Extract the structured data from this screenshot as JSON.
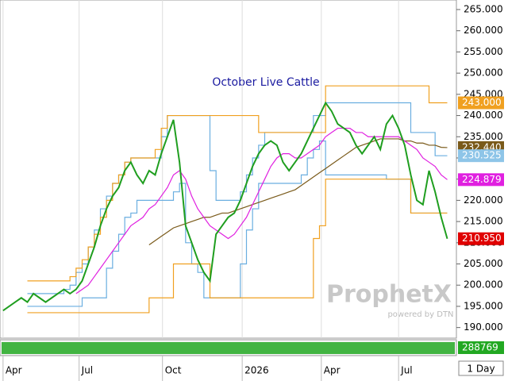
{
  "chart_data": {
    "type": "line",
    "title": "October Live Cattle",
    "watermark": "ProphetX",
    "watermark_sub": "powered by DTN",
    "interval": "1 Day",
    "x": [
      0,
      1,
      2,
      3,
      4,
      5,
      6,
      7,
      8,
      9,
      10,
      11,
      12,
      13,
      14,
      15,
      16,
      17,
      18,
      19,
      20,
      21,
      22,
      23,
      24,
      25,
      26,
      27,
      28,
      29,
      30,
      31,
      32,
      33,
      34,
      35,
      36,
      37,
      38,
      39,
      40,
      41,
      42,
      43,
      44,
      45,
      46,
      47,
      48,
      49,
      50,
      51,
      52,
      53,
      54,
      55,
      56,
      57,
      58,
      59,
      60,
      61,
      62,
      63,
      64,
      65,
      66,
      67,
      68,
      69,
      70,
      71,
      72,
      73
    ],
    "xlim": [
      -0.5,
      74.5
    ],
    "xticks": [
      {
        "value": 0,
        "label": "Apr"
      },
      {
        "value": 12.5,
        "label": "Jul"
      },
      {
        "value": 26.2,
        "label": "Oct"
      },
      {
        "value": 39.3,
        "label": "2026"
      },
      {
        "value": 52.3,
        "label": "Apr"
      },
      {
        "value": 65,
        "label": "Jul"
      }
    ],
    "ylim": [
      187.5,
      267.25
    ],
    "yticks": [
      {
        "value": 190,
        "label": "190.000"
      },
      {
        "value": 195,
        "label": "195.000"
      },
      {
        "value": 200,
        "label": "200.000"
      },
      {
        "value": 205,
        "label": "205.000"
      },
      {
        "value": 210,
        "label": "210.000"
      },
      {
        "value": 215,
        "label": "215.000"
      },
      {
        "value": 220,
        "label": "220.000"
      },
      {
        "value": 225,
        "label": "225.000"
      },
      {
        "value": 230,
        "label": "230.000"
      },
      {
        "value": 235,
        "label": "235.000"
      },
      {
        "value": 240,
        "label": "240.000"
      },
      {
        "value": 245,
        "label": "245.000"
      },
      {
        "value": 250,
        "label": "250.000"
      },
      {
        "value": 255,
        "label": "255.000"
      },
      {
        "value": 260,
        "label": "260.000"
      },
      {
        "value": 265,
        "label": "265.000"
      }
    ],
    "grid": "x",
    "series": [
      {
        "color": "#1f9e1f",
        "shape": "line",
        "values": [
          194,
          195,
          196,
          197,
          196,
          198,
          197,
          196,
          197,
          198,
          199,
          198,
          199,
          201,
          205,
          209,
          214,
          218,
          221,
          223,
          227,
          229,
          226,
          224,
          227,
          226,
          231,
          235,
          239,
          229,
          214,
          210,
          206,
          203,
          201,
          212,
          214,
          216,
          217,
          220,
          224,
          228,
          231,
          233,
          234,
          233,
          229,
          227,
          229,
          231,
          234,
          237,
          240,
          243,
          241,
          238,
          237,
          236,
          233,
          231,
          233,
          235,
          232,
          238,
          240,
          237,
          233,
          226,
          220,
          219,
          227,
          222,
          216,
          210.95
        ]
      },
      {
        "color": "#e020e0",
        "shape": "line",
        "values": [
          null,
          null,
          null,
          null,
          null,
          null,
          null,
          null,
          null,
          null,
          null,
          null,
          198,
          199,
          200,
          202,
          204,
          206,
          208,
          210,
          212,
          214,
          215,
          216,
          218,
          219,
          221,
          223,
          226,
          227,
          225,
          221,
          218,
          216,
          214,
          213,
          212,
          211,
          212,
          214,
          216,
          219,
          222,
          225,
          228,
          230,
          231,
          231,
          230,
          230,
          231,
          232,
          233,
          235,
          236,
          237,
          237,
          237,
          236,
          236,
          235,
          235,
          235,
          235,
          235,
          235,
          234,
          233,
          232,
          230,
          229,
          228,
          226,
          224.879
        ]
      },
      {
        "color": "#7a5a1a",
        "shape": "line",
        "values": [
          null,
          null,
          null,
          null,
          null,
          null,
          null,
          null,
          null,
          null,
          null,
          null,
          null,
          null,
          null,
          null,
          null,
          null,
          null,
          null,
          null,
          null,
          null,
          null,
          209.5,
          210.5,
          211.5,
          212.5,
          213.5,
          214,
          214.5,
          215,
          215.5,
          216,
          216,
          216.5,
          217,
          217,
          217.5,
          218,
          218.5,
          219,
          219.5,
          220,
          220.5,
          221,
          221.5,
          222,
          222.5,
          223.5,
          224.5,
          225.5,
          226.5,
          227.5,
          228.5,
          229.5,
          230.5,
          231.5,
          232.5,
          233,
          233.5,
          234,
          234.5,
          234.5,
          234.5,
          234.5,
          234,
          234,
          233.5,
          233.5,
          233,
          233,
          232.5,
          232.44
        ]
      },
      {
        "color": "#f0a020",
        "shape": "step",
        "values": [
          null,
          null,
          null,
          null,
          201,
          201,
          201,
          201,
          201,
          201,
          201,
          202,
          204,
          206,
          209,
          212,
          216,
          220,
          224,
          226,
          229,
          230,
          230,
          230,
          230,
          232,
          237,
          240,
          240,
          240,
          240,
          240,
          240,
          240,
          240,
          240,
          240,
          240,
          240,
          240,
          240,
          240,
          236,
          236,
          236,
          236,
          236,
          236,
          236,
          236,
          236,
          236,
          236,
          247,
          247,
          247,
          247,
          247,
          247,
          247,
          247,
          247,
          247,
          247,
          247,
          247,
          247,
          247,
          247,
          247,
          243,
          243,
          243,
          243
        ]
      },
      {
        "color": "#f0a020",
        "shape": "step",
        "values": [
          null,
          null,
          null,
          null,
          193.5,
          193.5,
          193.5,
          193.5,
          193.5,
          193.5,
          193.5,
          193.5,
          193.5,
          193.5,
          193.5,
          193.5,
          193.5,
          193.5,
          193.5,
          193.5,
          193.5,
          193.5,
          193.5,
          193.5,
          197,
          197,
          197,
          197,
          205,
          205,
          205,
          205,
          205,
          205,
          197,
          197,
          197,
          197,
          197,
          197,
          197,
          197,
          197,
          197,
          197,
          197,
          197,
          197,
          197,
          197,
          197,
          211,
          214,
          225,
          225,
          225,
          225,
          225,
          225,
          225,
          225,
          225,
          225,
          225,
          225,
          225,
          225,
          217,
          217,
          217,
          217,
          217,
          217,
          217
        ]
      },
      {
        "color": "#6aaee0",
        "shape": "step",
        "values": [
          null,
          null,
          null,
          null,
          198,
          198,
          198,
          198,
          198,
          198,
          199,
          200,
          203,
          205,
          209,
          213,
          218,
          221,
          224,
          226,
          229,
          230,
          230,
          230,
          230,
          230,
          235,
          240,
          240,
          240,
          240,
          240,
          240,
          240,
          227,
          220,
          220,
          220,
          220,
          222,
          226,
          230,
          233,
          236,
          236,
          236,
          236,
          236,
          236,
          236,
          236,
          240,
          240,
          243,
          243,
          243,
          243,
          243,
          243,
          243,
          243,
          243,
          243,
          243,
          243,
          243,
          243,
          236,
          236,
          236,
          236,
          230.525,
          230.525,
          230.525
        ]
      },
      {
        "color": "#6aaee0",
        "shape": "step",
        "values": [
          null,
          null,
          null,
          null,
          195,
          195,
          195,
          195,
          195,
          195,
          195,
          195,
          195,
          197,
          197,
          197,
          197,
          204,
          208,
          212,
          216,
          217,
          220,
          220,
          220,
          220,
          220,
          220,
          222,
          224,
          210,
          205,
          203,
          197,
          197,
          197,
          197,
          197,
          197,
          205,
          213,
          218,
          224,
          224,
          224,
          224,
          224,
          224,
          224,
          226,
          230,
          232,
          234,
          226,
          226,
          226,
          226,
          226,
          226,
          226,
          226,
          226,
          226,
          225,
          225,
          225,
          225,
          217,
          217,
          217,
          217,
          217,
          217,
          217
        ]
      }
    ],
    "price_tags": [
      {
        "value": 243,
        "label": "243.000",
        "color": "#f0a020"
      },
      {
        "value": 232.44,
        "label": "232.440",
        "color": "#7a5a1a"
      },
      {
        "value": 230.525,
        "label": "230.525",
        "color": "#8ec5e8"
      },
      {
        "value": 224.879,
        "label": "224.879",
        "color": "#e020e0"
      },
      {
        "value": 210.95,
        "label": "210.950",
        "color": "#e00000"
      }
    ],
    "volume": {
      "value": 288769,
      "color": "#22a822"
    }
  }
}
